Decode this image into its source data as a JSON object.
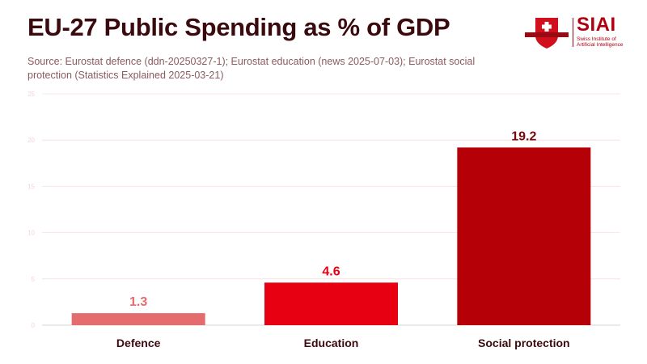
{
  "header": {
    "title": "EU-27 Public Spending as % of GDP",
    "subtitle": "Source: Eurostat defence (ddn-20250327-1); Eurostat education (news 2025-07-03); Eurostat social protection (Statistics Explained 2025-03-21)"
  },
  "logo": {
    "name": "SIAI",
    "tagline_line1": "Swiss Institute of",
    "tagline_line2": "Artificial Intelligence",
    "icon": "shield-swiss-cross-icon"
  },
  "chart_data": {
    "type": "bar",
    "title": "EU-27 Public Spending as % of GDP",
    "xlabel": "",
    "ylabel": "",
    "categories": [
      "Defence",
      "Education",
      "Social protection"
    ],
    "values": [
      1.3,
      4.6,
      19.2
    ],
    "value_labels": [
      "1.3",
      "4.6",
      "19.2"
    ],
    "colors": [
      "#e46b6e",
      "#e60012",
      "#b50008"
    ],
    "ylim": [
      0,
      25
    ],
    "yticks": [
      0,
      5,
      10,
      15,
      20,
      25
    ],
    "grid": true,
    "legend": "none"
  }
}
